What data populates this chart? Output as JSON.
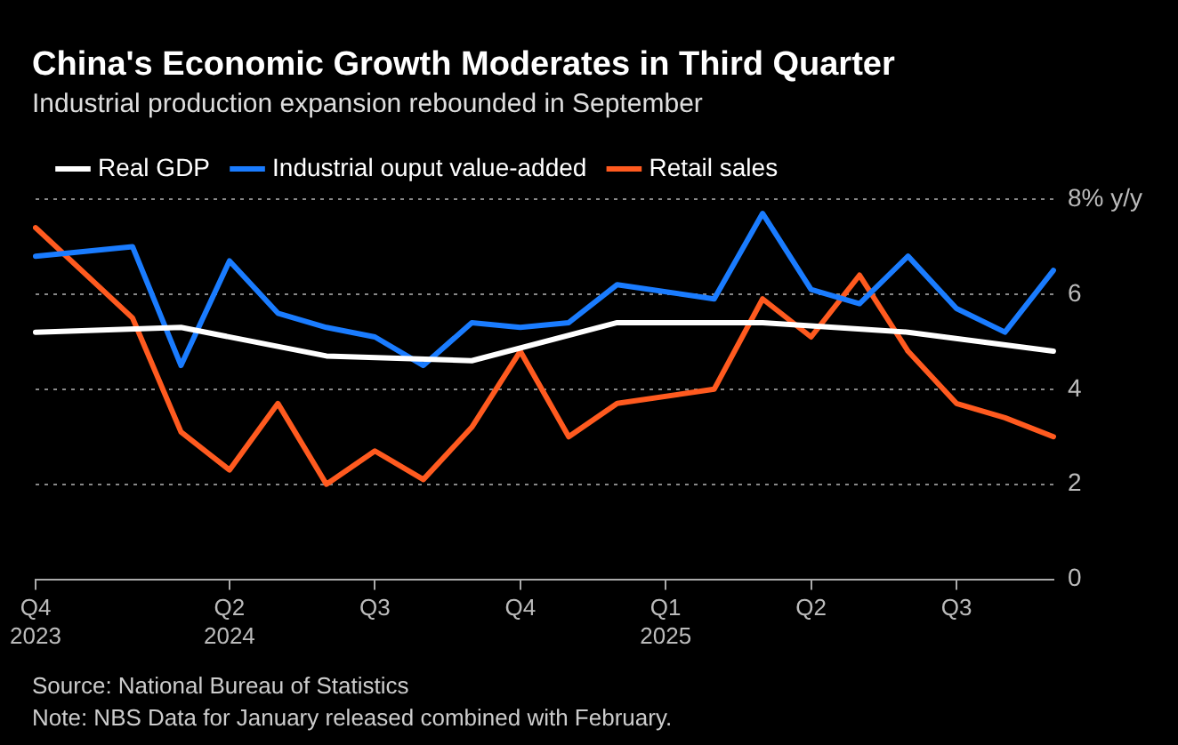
{
  "chart_data": {
    "type": "line",
    "title": "China's Economic Growth Moderates in Third Quarter",
    "subtitle": "Industrial production expansion rebounded in September",
    "categories": [
      "Q4 2023",
      null,
      null,
      null,
      "Q2 2024",
      null,
      null,
      "Q3",
      null,
      null,
      "Q4",
      null,
      null,
      "Q1 2025",
      null,
      null,
      "Q2",
      null,
      null,
      "Q3",
      null,
      null
    ],
    "series": [
      {
        "name": "Real GDP",
        "color": "#ffffff",
        "values": [
          5.2,
          null,
          null,
          5.3,
          null,
          null,
          4.7,
          null,
          null,
          4.6,
          null,
          null,
          5.4,
          null,
          null,
          5.4,
          null,
          null,
          5.2,
          null,
          null,
          4.8
        ]
      },
      {
        "name": "Industrial ouput value-added",
        "color": "#1a7cff",
        "values": [
          6.8,
          null,
          7.0,
          4.5,
          6.7,
          5.6,
          5.3,
          5.1,
          4.5,
          5.4,
          5.3,
          5.4,
          6.2,
          null,
          5.9,
          7.7,
          6.1,
          5.8,
          6.8,
          5.7,
          5.2,
          6.5
        ]
      },
      {
        "name": "Retail sales",
        "color": "#ff5a1f",
        "values": [
          7.4,
          null,
          5.5,
          3.1,
          2.3,
          3.7,
          2.0,
          2.7,
          2.1,
          3.2,
          4.8,
          3.0,
          3.7,
          null,
          4.0,
          5.9,
          5.1,
          6.4,
          4.8,
          3.7,
          3.4,
          3.0
        ]
      }
    ],
    "ylim": [
      0,
      8
    ],
    "yticks": [
      0,
      2,
      4,
      6,
      {
        "value": 8,
        "label": "8% y/y"
      }
    ],
    "grid": "y",
    "legend": "top left",
    "marker": "none",
    "line_style": "solid",
    "annotations": [
      "Source: National Bureau of Statistics",
      "Note: NBS Data for January released combined with February."
    ]
  }
}
